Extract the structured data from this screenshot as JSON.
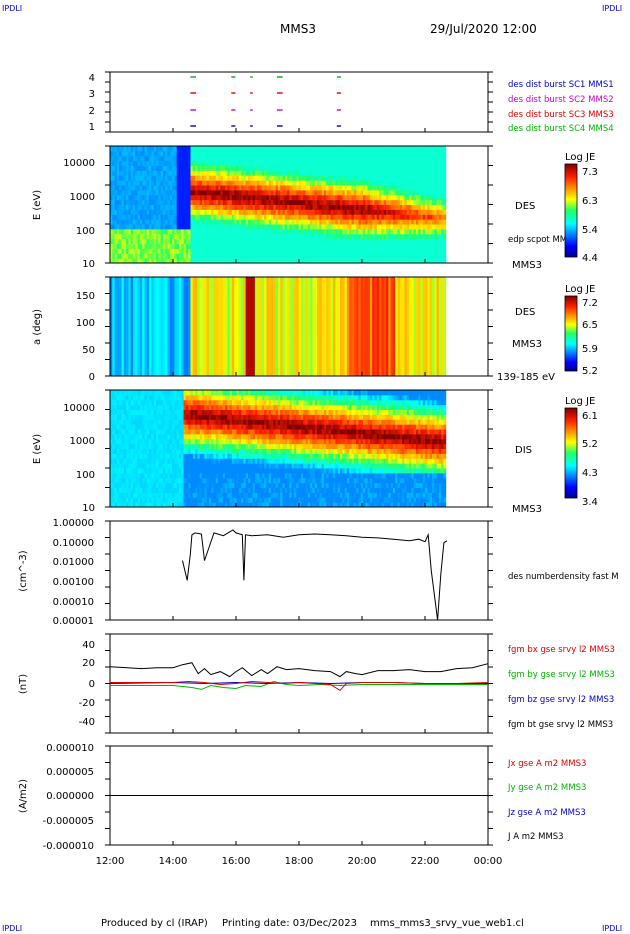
{
  "corner_label": "IPDLI",
  "header": {
    "spacecraft": "MMS3",
    "datetime": "29/Jul/2020 12:00"
  },
  "footer": {
    "produced_by": "Produced by cl (IRAP)",
    "printing_date": "Printing date: 03/Dec/2023",
    "filename": "mms_mms3_srvy_vue_web1.cl"
  },
  "colors": {
    "red": "#dd0000",
    "green": "#00b400",
    "blue": "#0000cc",
    "magenta": "#cc00cc",
    "black": "#000000"
  },
  "chart_data": [
    {
      "type": "scatter",
      "panel": "burst-flags",
      "y_ticks": [
        "1",
        "2",
        "3",
        "4"
      ],
      "legend": [
        {
          "label": "des dist burst SC1 MMS1",
          "color": "#0000cc"
        },
        {
          "label": "des dist burst SC2 MMS2",
          "color": "#cc00cc"
        },
        {
          "label": "des dist burst SC3 MMS3",
          "color": "#dd0000"
        },
        {
          "label": "des dist burst SC4 MMS4",
          "color": "#00b400"
        }
      ],
      "burst_intervals_hours": [
        [
          14.55,
          14.7
        ],
        [
          15.85,
          15.95
        ],
        [
          16.45,
          16.5
        ],
        [
          17.3,
          17.45
        ],
        [
          19.2,
          19.3
        ]
      ]
    },
    {
      "type": "heatmap",
      "panel": "des-energy",
      "ylabel": "E (eV)",
      "y_scale": "log",
      "y_ticks": [
        "10",
        "100",
        "1000",
        "10000"
      ],
      "colorbar": {
        "title": "Log JE",
        "ticks": [
          "7.3",
          "6.3",
          "5.4",
          "4.4"
        ]
      },
      "instrument": "DES",
      "overlay_label": "edp scpot MMS3",
      "spacecraft": "MMS3"
    },
    {
      "type": "heatmap",
      "panel": "des-pitch-angle",
      "ylabel": "a (deg)",
      "y_ticks": [
        "0",
        "50",
        "100",
        "150"
      ],
      "colorbar": {
        "title": "Log JE",
        "ticks": [
          "7.2",
          "6.5",
          "5.9",
          "5.2"
        ]
      },
      "instrument": "DES",
      "spacecraft": "MMS3",
      "energy_range": "139-185 eV"
    },
    {
      "type": "heatmap",
      "panel": "dis-energy",
      "ylabel": "E (eV)",
      "y_scale": "log",
      "y_ticks": [
        "10",
        "100",
        "1000",
        "10000"
      ],
      "colorbar": {
        "title": "Log JE",
        "ticks": [
          "6.1",
          "5.2",
          "4.3",
          "3.4"
        ]
      },
      "instrument": "DIS",
      "spacecraft": "MMS3"
    },
    {
      "type": "line",
      "panel": "density",
      "ylabel": "(cm^-3)",
      "y_scale": "log",
      "y_ticks": [
        "0.00001",
        "0.00010",
        "0.00100",
        "0.01000",
        "0.10000",
        "1.00000"
      ],
      "series": [
        {
          "name": "des numberdensity fast M",
          "color": "#000000",
          "x": [
            14.3,
            14.45,
            14.55,
            14.6,
            14.7,
            14.9,
            15.0,
            15.3,
            15.6,
            15.9,
            16.0,
            16.2,
            16.25,
            16.3,
            16.5,
            17.0,
            17.5,
            18.0,
            18.5,
            19.0,
            19.5,
            20.0,
            20.5,
            21.0,
            21.5,
            21.8,
            22.0,
            22.1,
            22.2,
            22.4,
            22.5,
            22.6,
            22.7
          ],
          "y": [
            0.01,
            0.001,
            0.02,
            0.2,
            0.25,
            0.22,
            0.01,
            0.25,
            0.18,
            0.35,
            0.25,
            0.2,
            0.001,
            0.2,
            0.18,
            0.2,
            0.15,
            0.2,
            0.22,
            0.2,
            0.18,
            0.15,
            0.14,
            0.12,
            0.1,
            0.12,
            0.09,
            0.2,
            0.003,
            1e-05,
            0.002,
            0.08,
            0.1
          ]
        }
      ]
    },
    {
      "type": "line",
      "panel": "magnetic-field",
      "ylabel": "(nT)",
      "ylim": [
        -50,
        50
      ],
      "y_ticks": [
        "-40",
        "-20",
        "0",
        "20",
        "40"
      ],
      "series": [
        {
          "name": "fgm bx gse srvy l2 MMS3",
          "color": "#dd0000",
          "x": [
            12,
            14,
            14.5,
            15,
            15.5,
            16,
            16.5,
            17,
            17.5,
            18,
            18.5,
            19,
            19.3,
            19.5,
            20,
            21,
            22,
            23,
            24
          ],
          "y": [
            1,
            1,
            2,
            1,
            -1,
            0,
            2,
            1,
            0,
            1,
            0,
            -1,
            -7,
            0,
            1,
            1,
            0,
            0,
            1
          ]
        },
        {
          "name": "fgm by gse srvy l2 MMS3",
          "color": "#00b400",
          "x": [
            12,
            14,
            14.6,
            14.9,
            15.2,
            15.6,
            16,
            16.3,
            16.8,
            17.2,
            17.6,
            18,
            18.7,
            19.3,
            20,
            21,
            22,
            23,
            24
          ],
          "y": [
            -2,
            -2,
            -4,
            -6,
            -2,
            -4,
            -5,
            -2,
            -3,
            2,
            -1,
            -2,
            -1,
            -2,
            -1,
            -1,
            -1,
            -1,
            -1
          ]
        },
        {
          "name": "fgm bz gse srvy l2 MMS3",
          "color": "#0000cc",
          "x": [
            12,
            14,
            15,
            16,
            17,
            18,
            19,
            20,
            21,
            22,
            23,
            24
          ],
          "y": [
            0,
            1,
            0,
            1,
            0,
            1,
            0,
            1,
            1,
            0,
            0,
            0
          ]
        },
        {
          "name": "fgm bt gse srvy l2 MMS3",
          "color": "#000000",
          "x": [
            12,
            13,
            13.5,
            14,
            14.3,
            14.6,
            14.8,
            15.0,
            15.2,
            15.5,
            15.8,
            16.0,
            16.2,
            16.5,
            16.8,
            17.0,
            17.3,
            17.6,
            18.0,
            18.5,
            19.0,
            19.3,
            19.5,
            19.8,
            20.0,
            20.5,
            21.0,
            21.5,
            22.0,
            22.5,
            23.0,
            23.5,
            24.0
          ],
          "y": [
            17,
            15,
            16,
            16,
            19,
            21,
            10,
            15,
            9,
            12,
            7,
            12,
            16,
            8,
            14,
            10,
            17,
            14,
            15,
            13,
            12,
            7,
            12,
            10,
            9,
            13,
            13,
            14,
            12,
            12,
            15,
            16,
            20
          ]
        }
      ]
    },
    {
      "type": "line",
      "panel": "current-density",
      "ylabel": "(A/m2)",
      "ylim": [
        -1e-05,
        1e-05
      ],
      "y_ticks": [
        "-0.000010",
        "-0.000005",
        "0.000000",
        "0.000005",
        "0.000010"
      ],
      "x_ticks": [
        "12:00",
        "14:00",
        "16:00",
        "18:00",
        "20:00",
        "22:00",
        "00:00"
      ],
      "series": [
        {
          "name": "Jx gse A m2 MMS3",
          "color": "#dd0000"
        },
        {
          "name": "Jy gse A m2 MMS3",
          "color": "#00b400"
        },
        {
          "name": "Jz gse A m2 MMS3",
          "color": "#0000cc"
        },
        {
          "name": "J A m2 MMS3",
          "color": "#000000",
          "x": [
            12,
            24
          ],
          "y": [
            0,
            0
          ]
        }
      ]
    }
  ]
}
